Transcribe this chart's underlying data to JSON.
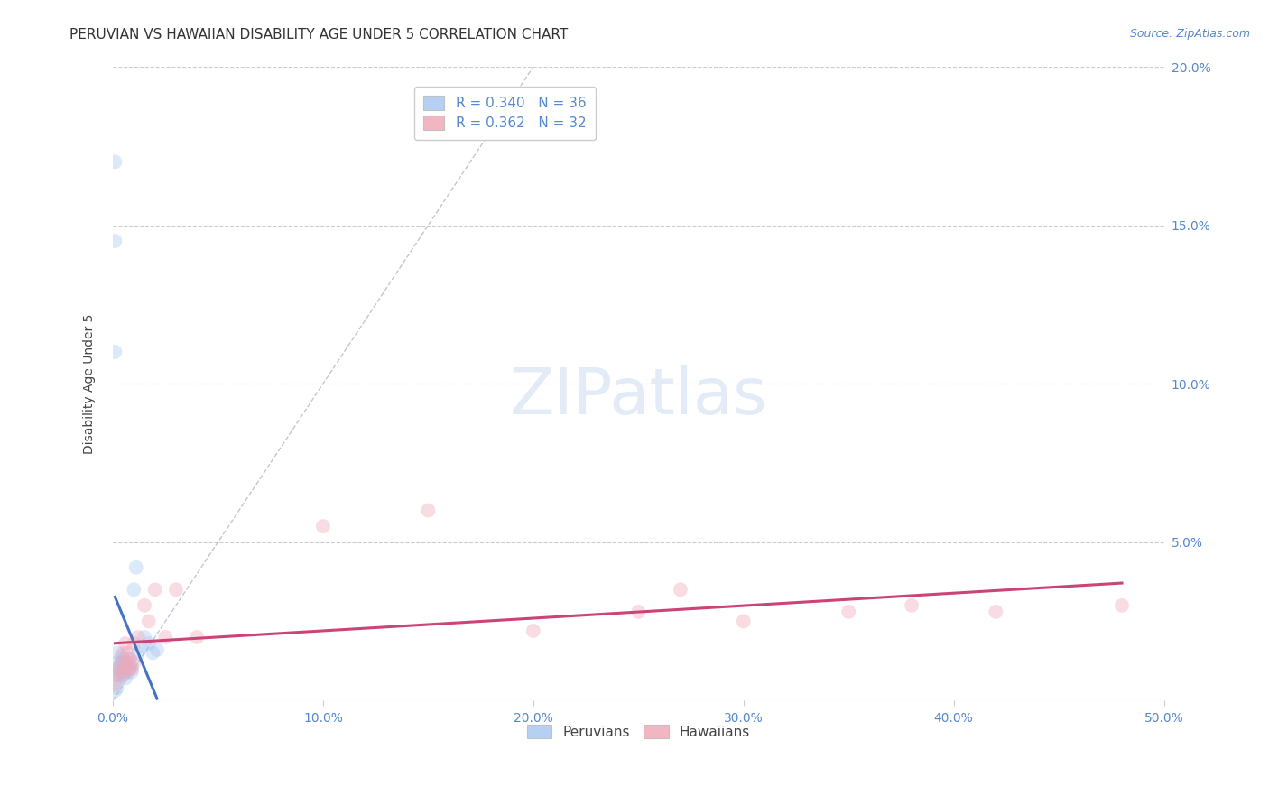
{
  "title": "PERUVIAN VS HAWAIIAN DISABILITY AGE UNDER 5 CORRELATION CHART",
  "source": "Source: ZipAtlas.com",
  "ylabel": "Disability Age Under 5",
  "xlim": [
    0,
    0.5
  ],
  "ylim": [
    0,
    0.2
  ],
  "xticks": [
    0.0,
    0.1,
    0.2,
    0.3,
    0.4,
    0.5
  ],
  "yticks": [
    0.05,
    0.1,
    0.15,
    0.2
  ],
  "background_color": "#ffffff",
  "legend_r1": "R = 0.340",
  "legend_n1": "N = 36",
  "legend_r2": "R = 0.362",
  "legend_n2": "N = 32",
  "peruvian_color": "#a8c8f0",
  "hawaiian_color": "#f0a8b8",
  "peruvian_line_color": "#4472c4",
  "hawaiian_line_color": "#cc4477",
  "ref_line_color": "#b0b8c8",
  "peruvian_x": [
    0.001,
    0.001,
    0.001,
    0.002,
    0.002,
    0.002,
    0.002,
    0.003,
    0.003,
    0.003,
    0.004,
    0.004,
    0.004,
    0.004,
    0.005,
    0.005,
    0.005,
    0.006,
    0.006,
    0.006,
    0.007,
    0.007,
    0.008,
    0.008,
    0.009,
    0.009,
    0.01,
    0.011,
    0.012,
    0.014,
    0.015,
    0.017,
    0.019,
    0.021,
    0.001,
    0.002
  ],
  "peruvian_y": [
    0.17,
    0.145,
    0.11,
    0.01,
    0.008,
    0.012,
    0.015,
    0.007,
    0.009,
    0.011,
    0.008,
    0.01,
    0.012,
    0.014,
    0.009,
    0.011,
    0.013,
    0.007,
    0.01,
    0.012,
    0.009,
    0.011,
    0.01,
    0.013,
    0.009,
    0.011,
    0.035,
    0.042,
    0.015,
    0.017,
    0.02,
    0.018,
    0.015,
    0.016,
    0.003,
    0.004
  ],
  "hawaiian_x": [
    0.001,
    0.002,
    0.003,
    0.004,
    0.005,
    0.005,
    0.006,
    0.006,
    0.007,
    0.007,
    0.008,
    0.008,
    0.009,
    0.01,
    0.01,
    0.012,
    0.015,
    0.017,
    0.02,
    0.025,
    0.03,
    0.04,
    0.1,
    0.15,
    0.2,
    0.25,
    0.27,
    0.3,
    0.35,
    0.38,
    0.42,
    0.48
  ],
  "hawaiian_y": [
    0.005,
    0.008,
    0.01,
    0.012,
    0.008,
    0.015,
    0.01,
    0.018,
    0.012,
    0.015,
    0.01,
    0.013,
    0.01,
    0.018,
    0.012,
    0.02,
    0.03,
    0.025,
    0.035,
    0.02,
    0.035,
    0.02,
    0.055,
    0.06,
    0.022,
    0.028,
    0.035,
    0.025,
    0.028,
    0.03,
    0.028,
    0.03
  ],
  "title_fontsize": 11,
  "axis_label_fontsize": 10,
  "tick_fontsize": 10,
  "legend_fontsize": 11,
  "source_fontsize": 9,
  "marker_size": 130,
  "marker_alpha": 0.4,
  "line_width": 2.2
}
